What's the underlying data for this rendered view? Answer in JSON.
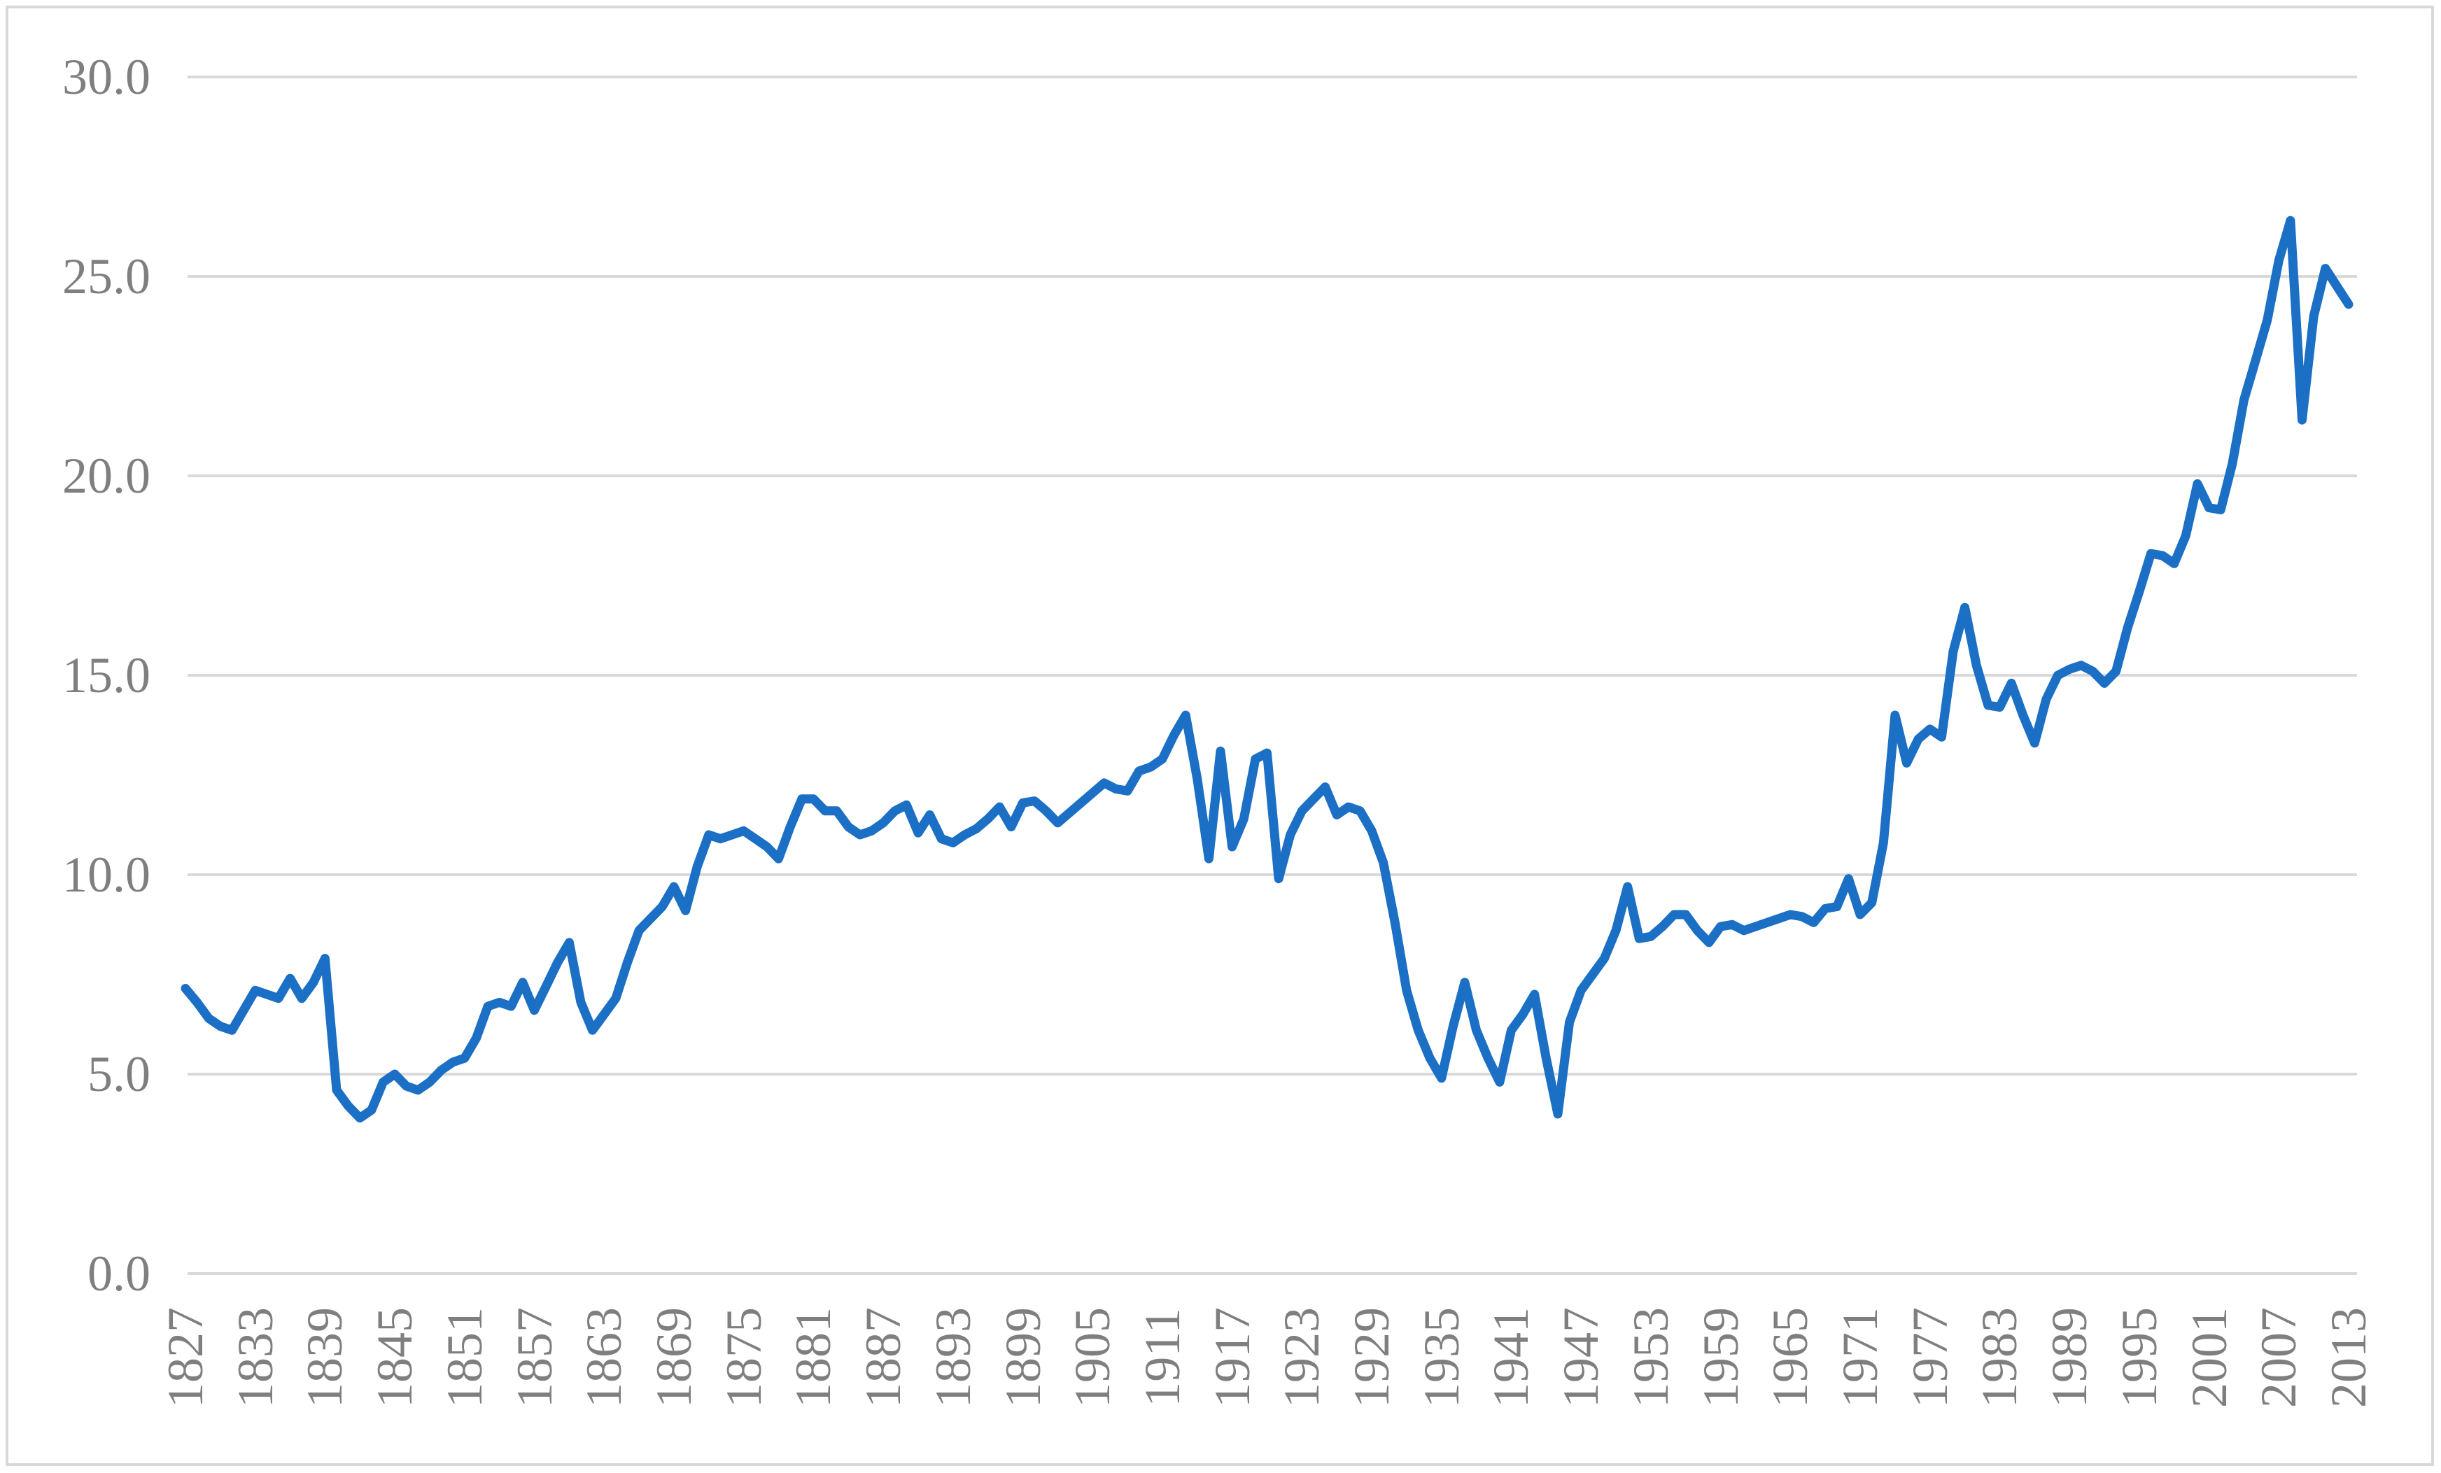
{
  "chart_data": {
    "type": "line",
    "title": "",
    "x_start": 1827,
    "x_end": 2013,
    "x_step": 1,
    "values": [
      7.15,
      6.8,
      6.4,
      6.2,
      6.1,
      6.6,
      7.1,
      7.0,
      6.9,
      7.4,
      6.9,
      7.3,
      7.9,
      4.6,
      4.2,
      3.9,
      4.1,
      4.8,
      5.0,
      4.7,
      4.6,
      4.8,
      5.1,
      5.3,
      5.4,
      5.9,
      6.7,
      6.8,
      6.7,
      7.3,
      6.6,
      7.2,
      7.8,
      8.3,
      6.8,
      6.1,
      6.5,
      6.9,
      7.8,
      8.6,
      8.9,
      9.2,
      9.7,
      9.1,
      10.2,
      11.0,
      10.9,
      11.0,
      11.1,
      10.9,
      10.7,
      10.4,
      11.2,
      11.9,
      11.9,
      11.6,
      11.6,
      11.2,
      11.0,
      11.1,
      11.3,
      11.6,
      11.75,
      11.05,
      11.5,
      10.9,
      10.8,
      11.0,
      11.15,
      11.4,
      11.7,
      11.2,
      11.8,
      11.85,
      11.6,
      11.3,
      11.55,
      11.8,
      12.05,
      12.3,
      12.15,
      12.1,
      12.6,
      12.7,
      12.9,
      13.5,
      14.0,
      12.4,
      10.4,
      13.1,
      10.7,
      11.4,
      12.9,
      13.05,
      9.9,
      11.0,
      11.6,
      11.9,
      12.2,
      11.5,
      11.7,
      11.6,
      11.1,
      10.3,
      8.8,
      7.1,
      6.1,
      5.4,
      4.9,
      6.2,
      7.3,
      6.1,
      5.4,
      4.8,
      6.1,
      6.5,
      7.0,
      5.4,
      4.0,
      6.3,
      7.1,
      7.5,
      7.9,
      8.6,
      9.7,
      8.4,
      8.45,
      8.7,
      9.0,
      9.0,
      8.6,
      8.3,
      8.7,
      8.75,
      8.6,
      8.7,
      8.8,
      8.9,
      9.0,
      8.95,
      8.8,
      9.15,
      9.2,
      9.9,
      9.0,
      9.3,
      10.8,
      14.0,
      12.8,
      13.4,
      13.65,
      13.45,
      15.6,
      16.7,
      15.25,
      14.25,
      14.2,
      14.8,
      14.0,
      13.3,
      14.4,
      15.0,
      15.15,
      15.25,
      15.1,
      14.8,
      15.1,
      16.2,
      17.1,
      18.05,
      18.0,
      17.8,
      18.5,
      19.8,
      19.2,
      19.15,
      20.3,
      21.9,
      22.9,
      23.9,
      25.4,
      26.4,
      21.4,
      24.0,
      25.2,
      24.75,
      24.3
    ],
    "ylim": [
      0.0,
      30.0
    ],
    "ytick_labels": [
      "0.0",
      "5.0",
      "10.0",
      "15.0",
      "20.0",
      "25.0",
      "30.0"
    ],
    "xtick_labels": [
      "1827",
      "1833",
      "1839",
      "1845",
      "1851",
      "1857",
      "1863",
      "1869",
      "1875",
      "1881",
      "1887",
      "1893",
      "1899",
      "1905",
      "1911",
      "1917",
      "1923",
      "1929",
      "1935",
      "1941",
      "1947",
      "1953",
      "1959",
      "1965",
      "1971",
      "1977",
      "1983",
      "1989",
      "1995",
      "2001",
      "2007",
      "2013"
    ],
    "legend": "none",
    "grid": "horizontal",
    "colors": {
      "line": "#1B6FC4",
      "gridline": "#D9D9D9",
      "frame_border": "#D9D9D9",
      "axis_text": "#7F7F7F",
      "background": "#FFFFFF"
    }
  }
}
